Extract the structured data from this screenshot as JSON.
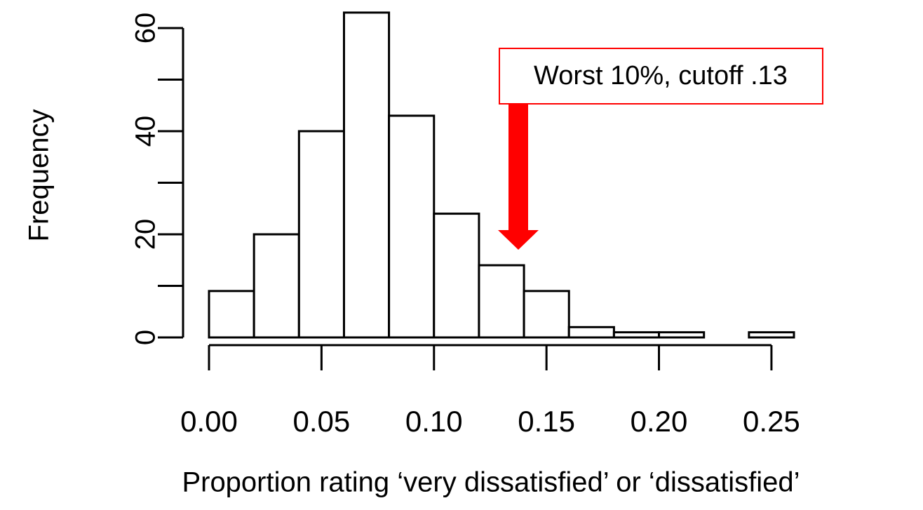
{
  "chart_data": {
    "type": "histogram",
    "xlabel": "Proportion rating ‘very dissatisfied’ or ‘dissatisfied’",
    "ylabel": "Frequency",
    "bins": [
      0,
      0.02,
      0.04,
      0.06,
      0.08,
      0.1,
      0.12,
      0.14,
      0.16,
      0.18,
      0.2,
      0.22,
      0.24,
      0.26
    ],
    "values": [
      9,
      20,
      40,
      63,
      43,
      24,
      14,
      9,
      2,
      1,
      1,
      0,
      1
    ],
    "color": "#ffffff",
    "xlim": [
      0,
      0.26
    ],
    "ylim": [
      0,
      60
    ],
    "xticks": [
      {
        "value": 0,
        "label": "0.00"
      },
      {
        "value": 0.05,
        "label": "0.05"
      },
      {
        "value": 0.1,
        "label": "0.10"
      },
      {
        "value": 0.15,
        "label": "0.15"
      },
      {
        "value": 0.2,
        "label": "0.20"
      },
      {
        "value": 0.25,
        "label": "0.25"
      }
    ],
    "yticks": [
      0,
      20,
      40,
      60
    ],
    "yminor_ticks": [
      10,
      30,
      50
    ],
    "annotation": {
      "text": "Worst 10%, cutoff .13",
      "color": "#ff0000"
    }
  }
}
